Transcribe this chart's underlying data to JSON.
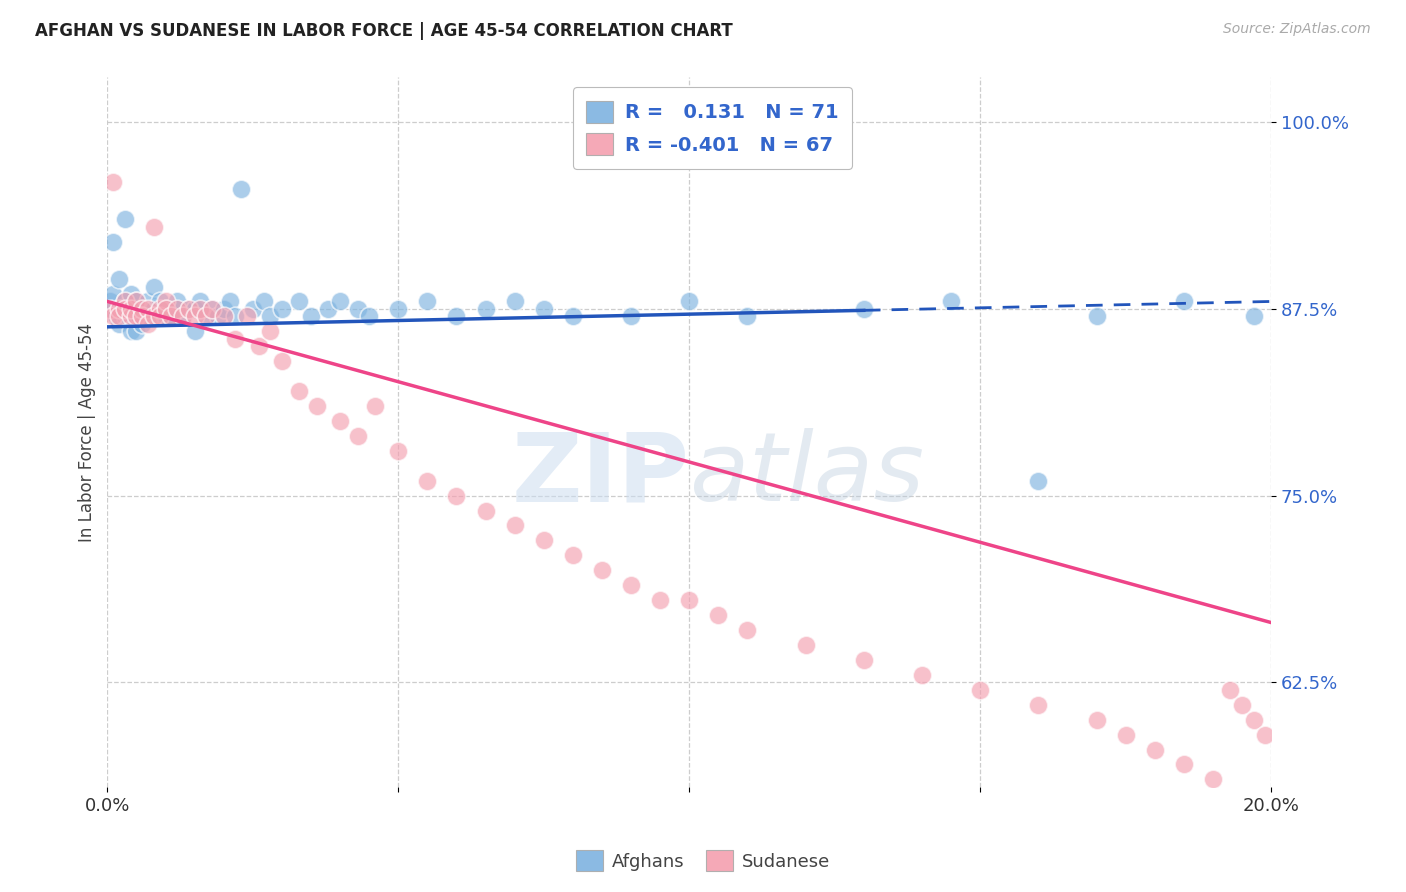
{
  "title": "AFGHAN VS SUDANESE IN LABOR FORCE | AGE 45-54 CORRELATION CHART",
  "source": "Source: ZipAtlas.com",
  "ylabel": "In Labor Force | Age 45-54",
  "xlim": [
    0.0,
    0.2
  ],
  "ylim": [
    0.555,
    1.03
  ],
  "ytick_labels_right": [
    "62.5%",
    "75.0%",
    "87.5%",
    "100.0%"
  ],
  "ytick_vals_right": [
    0.625,
    0.75,
    0.875,
    1.0
  ],
  "background_color": "#ffffff",
  "grid_color": "#c8c8c8",
  "blue_scatter_color": "#7eb3e0",
  "pink_scatter_color": "#f4a0b0",
  "trend_blue": "#2255bb",
  "trend_pink": "#ee4488",
  "R_afghan": 0.131,
  "N_afghan": 71,
  "R_sudanese": -0.401,
  "N_sudanese": 67,
  "legend_label_afghan": "Afghans",
  "legend_label_sudanese": "Sudanese",
  "afghan_x": [
    0.0005,
    0.001,
    0.001,
    0.001,
    0.0015,
    0.002,
    0.002,
    0.002,
    0.0025,
    0.003,
    0.003,
    0.003,
    0.0035,
    0.004,
    0.004,
    0.004,
    0.005,
    0.005,
    0.005,
    0.0055,
    0.006,
    0.006,
    0.007,
    0.007,
    0.008,
    0.008,
    0.009,
    0.009,
    0.01,
    0.01,
    0.011,
    0.012,
    0.012,
    0.013,
    0.014,
    0.015,
    0.015,
    0.016,
    0.017,
    0.018,
    0.019,
    0.02,
    0.021,
    0.022,
    0.023,
    0.025,
    0.027,
    0.028,
    0.03,
    0.033,
    0.035,
    0.038,
    0.04,
    0.043,
    0.045,
    0.05,
    0.055,
    0.06,
    0.065,
    0.07,
    0.075,
    0.08,
    0.09,
    0.1,
    0.11,
    0.13,
    0.145,
    0.16,
    0.17,
    0.185,
    0.197
  ],
  "afghan_y": [
    0.88,
    0.875,
    0.885,
    0.92,
    0.87,
    0.865,
    0.875,
    0.895,
    0.875,
    0.87,
    0.88,
    0.935,
    0.87,
    0.86,
    0.875,
    0.885,
    0.86,
    0.875,
    0.88,
    0.87,
    0.865,
    0.875,
    0.87,
    0.88,
    0.875,
    0.89,
    0.87,
    0.88,
    0.87,
    0.875,
    0.87,
    0.875,
    0.88,
    0.87,
    0.875,
    0.86,
    0.875,
    0.88,
    0.87,
    0.875,
    0.87,
    0.875,
    0.88,
    0.87,
    0.955,
    0.875,
    0.88,
    0.87,
    0.875,
    0.88,
    0.87,
    0.875,
    0.88,
    0.875,
    0.87,
    0.875,
    0.88,
    0.87,
    0.875,
    0.88,
    0.875,
    0.87,
    0.87,
    0.88,
    0.87,
    0.875,
    0.88,
    0.76,
    0.87,
    0.88,
    0.87
  ],
  "sudanese_x": [
    0.0005,
    0.001,
    0.001,
    0.002,
    0.002,
    0.003,
    0.003,
    0.004,
    0.004,
    0.005,
    0.005,
    0.006,
    0.006,
    0.007,
    0.007,
    0.008,
    0.008,
    0.009,
    0.009,
    0.01,
    0.01,
    0.011,
    0.012,
    0.013,
    0.014,
    0.015,
    0.016,
    0.017,
    0.018,
    0.02,
    0.022,
    0.024,
    0.026,
    0.028,
    0.03,
    0.033,
    0.036,
    0.04,
    0.043,
    0.046,
    0.05,
    0.055,
    0.06,
    0.065,
    0.07,
    0.075,
    0.08,
    0.085,
    0.09,
    0.095,
    0.1,
    0.105,
    0.11,
    0.12,
    0.13,
    0.14,
    0.15,
    0.16,
    0.17,
    0.175,
    0.18,
    0.185,
    0.19,
    0.193,
    0.195,
    0.197,
    0.199
  ],
  "sudanese_y": [
    0.875,
    0.87,
    0.96,
    0.875,
    0.87,
    0.88,
    0.875,
    0.87,
    0.875,
    0.87,
    0.88,
    0.875,
    0.87,
    0.875,
    0.865,
    0.93,
    0.87,
    0.875,
    0.87,
    0.88,
    0.875,
    0.87,
    0.875,
    0.87,
    0.875,
    0.87,
    0.875,
    0.87,
    0.875,
    0.87,
    0.855,
    0.87,
    0.85,
    0.86,
    0.84,
    0.82,
    0.81,
    0.8,
    0.79,
    0.81,
    0.78,
    0.76,
    0.75,
    0.74,
    0.73,
    0.72,
    0.71,
    0.7,
    0.69,
    0.68,
    0.68,
    0.67,
    0.66,
    0.65,
    0.64,
    0.63,
    0.62,
    0.61,
    0.6,
    0.59,
    0.58,
    0.57,
    0.56,
    0.62,
    0.61,
    0.6,
    0.59
  ],
  "trend_afghan_y0": 0.863,
  "trend_afghan_y1": 0.88,
  "trend_sudanese_y0": 0.88,
  "trend_sudanese_y1": 0.665
}
